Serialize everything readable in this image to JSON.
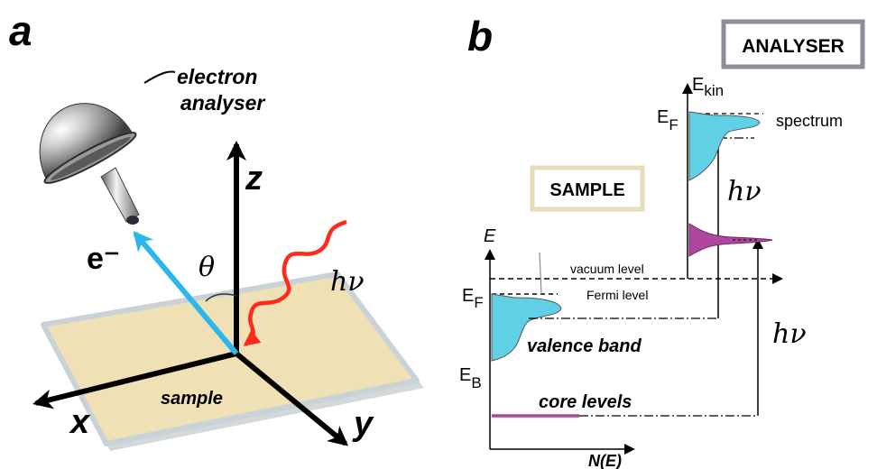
{
  "panel_a": {
    "letter": "a",
    "analyser_label_line1": "electron",
    "analyser_label_line2": "analyser",
    "axis_z": "z",
    "axis_x": "x",
    "axis_y": "y",
    "electron": "e⁻",
    "theta": "θ",
    "photon": "hν",
    "sample": "sample",
    "colors": {
      "photon": "#ff2a1a",
      "electron": "#2ab8ec",
      "sample": "#efe1b5"
    }
  },
  "panel_b": {
    "letter": "b",
    "analyser_box": "ANALYSER",
    "sample_box": "SAMPLE",
    "e_axis": "E",
    "ekin_axis_main": "E",
    "ekin_axis_sub": "kin",
    "ef_sample_main": "E",
    "ef_sample_sub": "F",
    "ef_analyser_main": "E",
    "ef_analyser_sub": "F",
    "eb_main": "E",
    "eb_sub": "B",
    "vacuum_level": "vacuum level",
    "fermi_level": "Fermi level",
    "valence_band": "valence band",
    "core_levels": "core levels",
    "spectrum": "spectrum",
    "photon_upper": "hν",
    "photon_lower": "hν",
    "n_of_e": "N(E)",
    "colors": {
      "valence": "#5fd0e6",
      "core": "#b0479e",
      "analyser_border": "#8e8c96",
      "sample_border": "#e6dcb8"
    }
  }
}
